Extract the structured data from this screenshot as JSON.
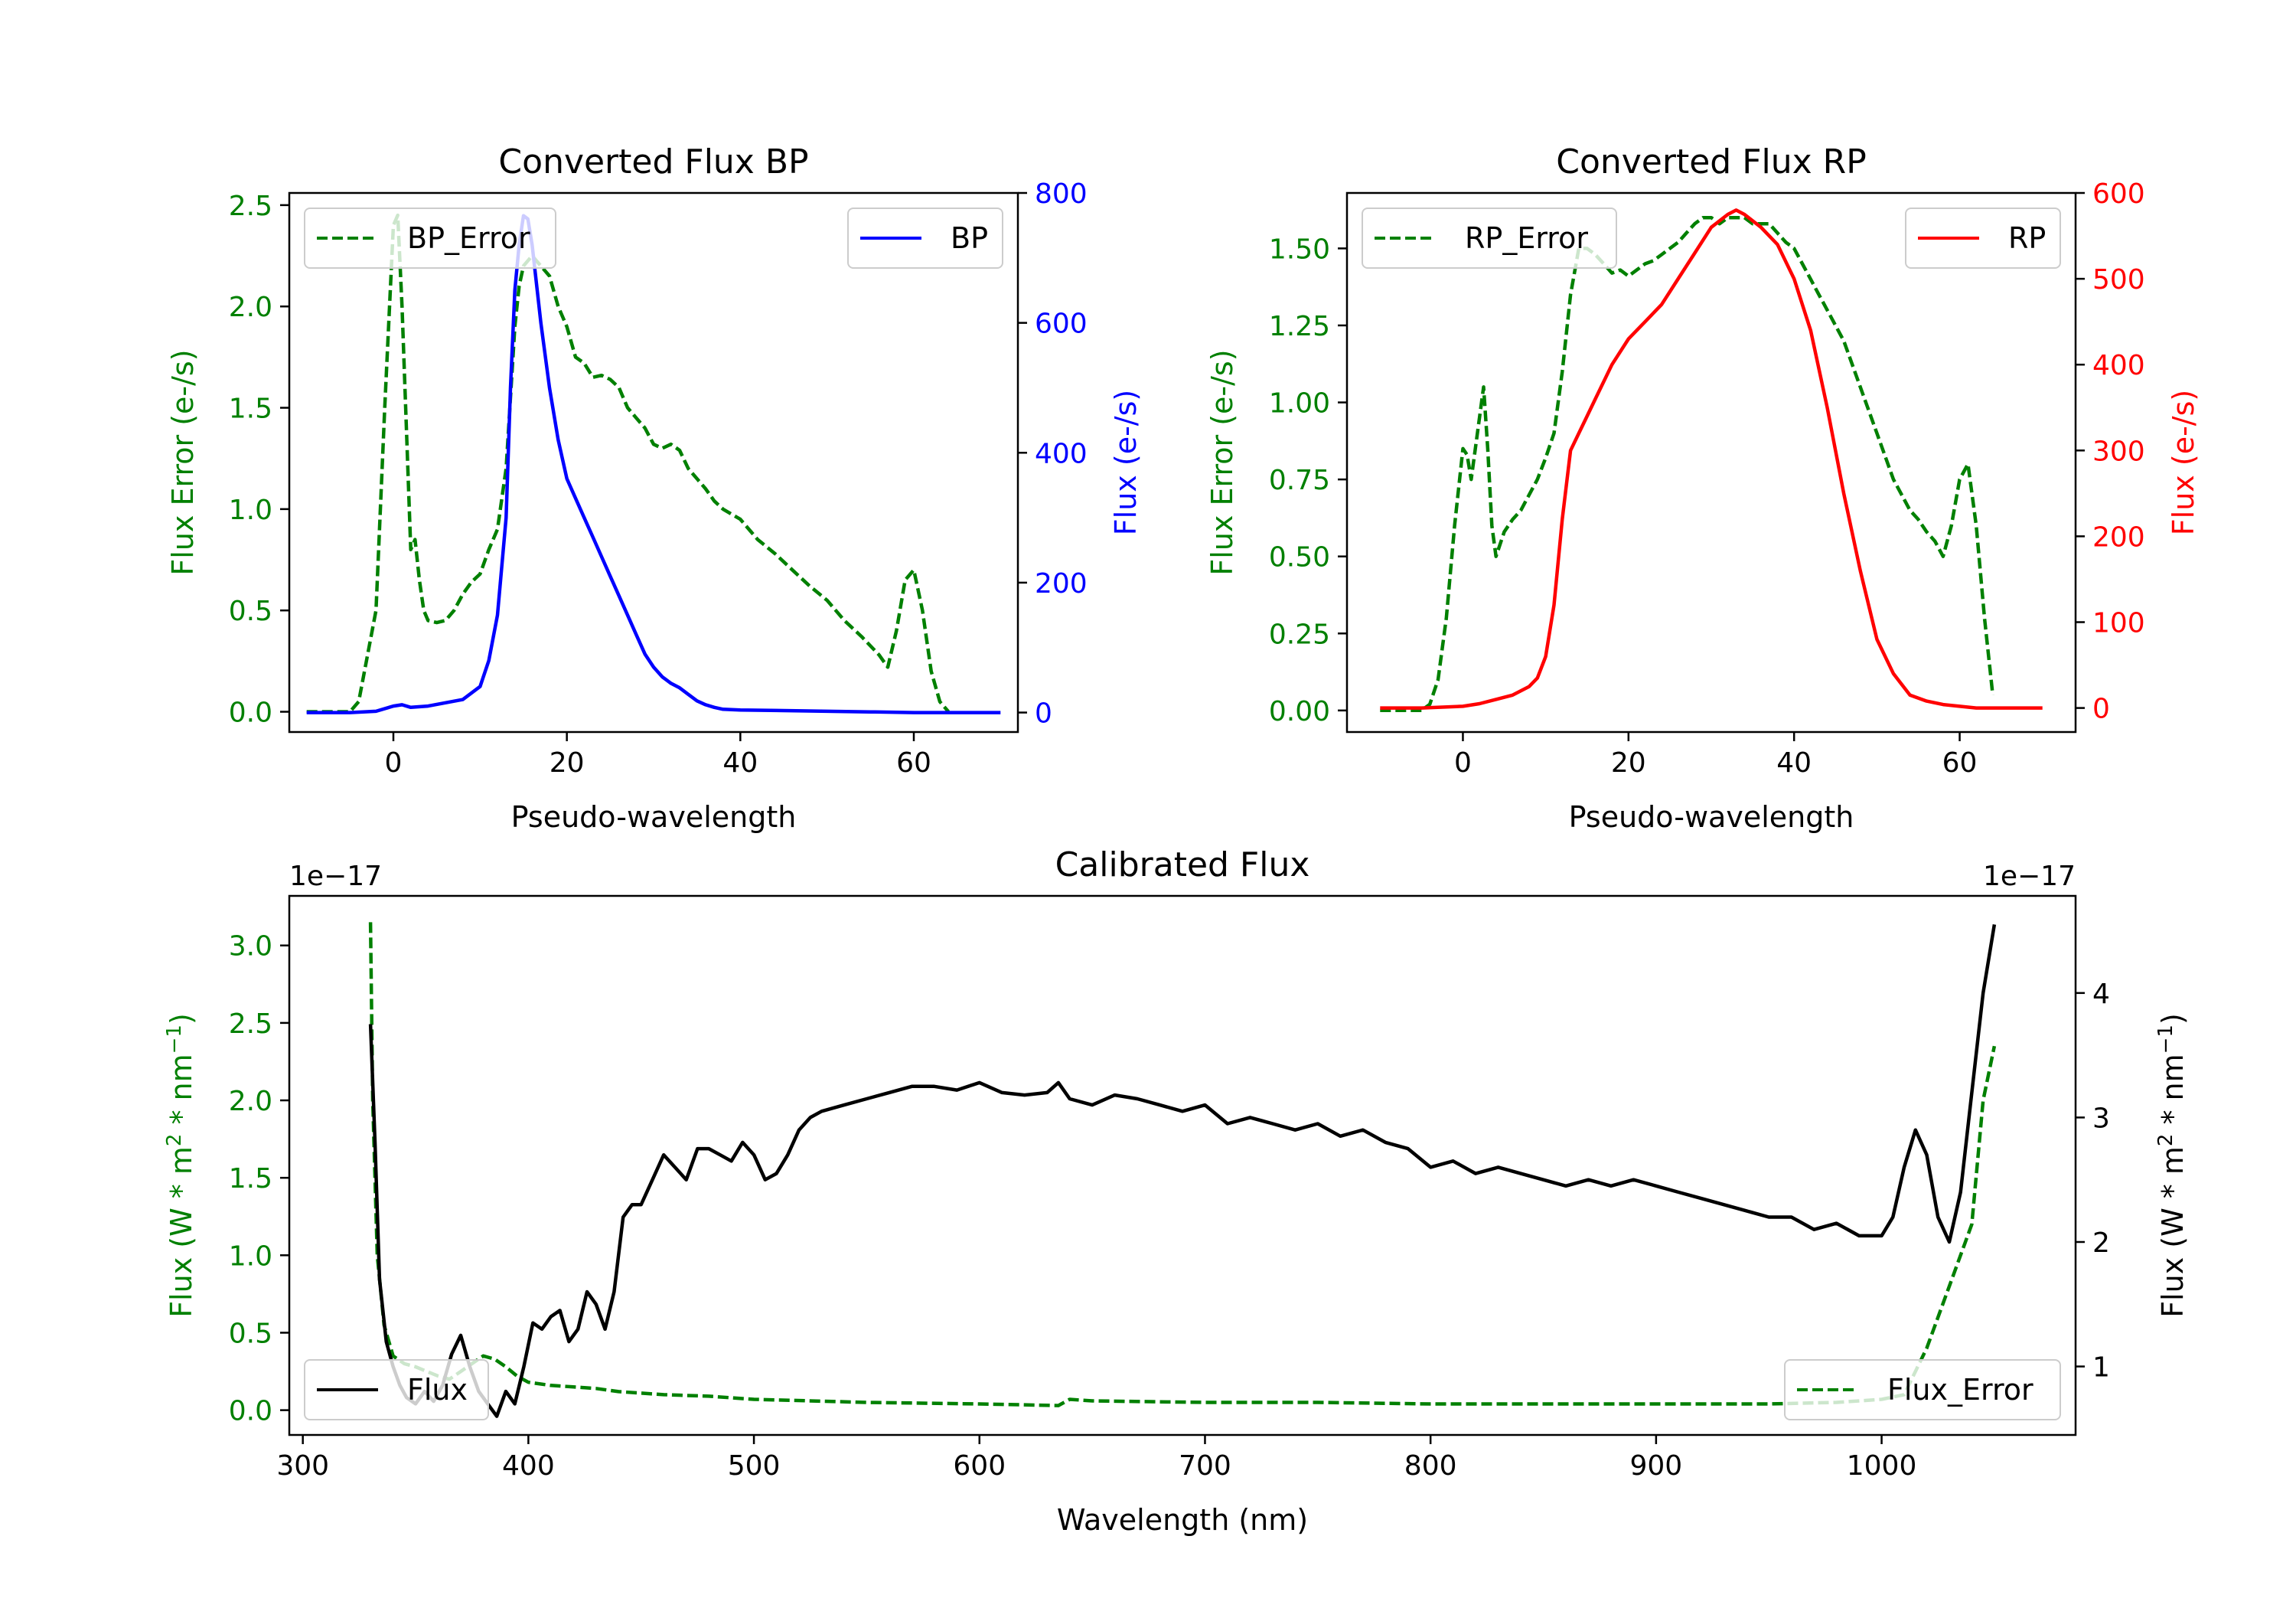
{
  "chart_data": [
    {
      "type": "line",
      "title": "Converted Flux BP",
      "xlabel": "Pseudo-wavelength",
      "xlim": [
        -12,
        72
      ],
      "x_ticks": [
        0,
        20,
        40,
        60
      ],
      "left_axis": {
        "label": "Flux Error (e-/s)",
        "color": "#008000",
        "ylim": [
          -0.1,
          2.56
        ],
        "ticks": [
          0.0,
          0.5,
          1.0,
          1.5,
          2.0,
          2.5
        ],
        "tick_labels": [
          "0.0",
          "0.5",
          "1.0",
          "1.5",
          "2.0",
          "2.5"
        ]
      },
      "right_axis": {
        "label": "Flux (e-/s)",
        "color": "#0000ff",
        "ylim": [
          -30,
          800
        ],
        "ticks": [
          0,
          200,
          400,
          600,
          800
        ],
        "tick_labels": [
          "0",
          "200",
          "400",
          "600",
          "800"
        ]
      },
      "series": [
        {
          "name": "BP_Error",
          "axis": "left",
          "style": "dashed",
          "color": "#008000",
          "x": [
            -10,
            -5,
            -4,
            -2,
            -1,
            0,
            0.5,
            1,
            2,
            2.5,
            3,
            3.5,
            4,
            5,
            6,
            7,
            8,
            9,
            10,
            11,
            12,
            13,
            14,
            14.5,
            15,
            16,
            17,
            18,
            19,
            20,
            21,
            22,
            23,
            24,
            25,
            26,
            27,
            28,
            29,
            30,
            31,
            32,
            33,
            34,
            35,
            36,
            37,
            38,
            40,
            42,
            44,
            46,
            48,
            50,
            52,
            54,
            56,
            57,
            58,
            59,
            60,
            61,
            62,
            63,
            64
          ],
          "y": [
            0.0,
            0.0,
            0.05,
            0.5,
            1.5,
            2.4,
            2.45,
            2.0,
            0.8,
            0.85,
            0.65,
            0.5,
            0.45,
            0.44,
            0.45,
            0.5,
            0.58,
            0.64,
            0.68,
            0.8,
            0.9,
            1.2,
            1.9,
            2.1,
            2.2,
            2.25,
            2.2,
            2.15,
            2.0,
            1.9,
            1.75,
            1.72,
            1.65,
            1.66,
            1.64,
            1.6,
            1.5,
            1.45,
            1.4,
            1.32,
            1.3,
            1.32,
            1.29,
            1.2,
            1.15,
            1.1,
            1.04,
            1.0,
            0.95,
            0.85,
            0.78,
            0.7,
            0.62,
            0.55,
            0.45,
            0.37,
            0.28,
            0.22,
            0.4,
            0.65,
            0.7,
            0.5,
            0.2,
            0.05,
            0.0
          ]
        },
        {
          "name": "BP",
          "axis": "right",
          "style": "solid",
          "color": "#0000ff",
          "x": [
            -10,
            -5,
            -2,
            0,
            1,
            2,
            4,
            6,
            8,
            10,
            11,
            12,
            13,
            13.5,
            14,
            14.5,
            15,
            15.5,
            16,
            17,
            18,
            19,
            20,
            21,
            22,
            23,
            24,
            25,
            26,
            27,
            28,
            29,
            30,
            31,
            32,
            33,
            34,
            35,
            36,
            37,
            38,
            40,
            45,
            50,
            55,
            60,
            65,
            70
          ],
          "y": [
            0,
            0,
            2,
            10,
            12,
            8,
            10,
            15,
            20,
            40,
            80,
            150,
            300,
            500,
            650,
            720,
            765,
            760,
            720,
            600,
            500,
            420,
            360,
            330,
            300,
            270,
            240,
            210,
            180,
            150,
            120,
            90,
            70,
            55,
            45,
            38,
            28,
            18,
            12,
            8,
            5,
            4,
            3,
            2,
            1,
            0,
            0,
            0
          ]
        }
      ],
      "legend": [
        {
          "name": "BP_Error",
          "placement": "upper-left"
        },
        {
          "name": "BP",
          "placement": "upper-right"
        }
      ]
    },
    {
      "type": "line",
      "title": "Converted Flux RP",
      "xlabel": "Pseudo-wavelength",
      "xlim": [
        -14,
        74
      ],
      "x_ticks": [
        0,
        20,
        40,
        60
      ],
      "left_axis": {
        "label": "Flux Error (e-/s)",
        "color": "#008000",
        "ylim": [
          -0.07,
          1.68
        ],
        "ticks": [
          0.0,
          0.25,
          0.5,
          0.75,
          1.0,
          1.25,
          1.5
        ],
        "tick_labels": [
          "0.00",
          "0.25",
          "0.50",
          "0.75",
          "1.00",
          "1.25",
          "1.50"
        ]
      },
      "right_axis": {
        "label": "Flux (e-/s)",
        "color": "#ff0000",
        "ylim": [
          -28,
          600
        ],
        "ticks": [
          0,
          100,
          200,
          300,
          400,
          500,
          600
        ],
        "tick_labels": [
          "0",
          "100",
          "200",
          "300",
          "400",
          "500",
          "600"
        ]
      },
      "series": [
        {
          "name": "RP_Error",
          "axis": "left",
          "style": "dashed",
          "color": "#008000",
          "x": [
            -10,
            -5,
            -4,
            -3,
            -2,
            -1,
            0,
            0.5,
            1,
            1.5,
            2,
            2.5,
            3,
            3.5,
            4,
            5,
            6,
            7,
            8,
            9,
            10,
            11,
            12,
            13,
            14,
            15,
            16,
            17,
            18,
            19,
            20,
            21,
            22,
            23,
            24,
            25,
            26,
            27,
            28,
            29,
            30,
            31,
            32,
            33,
            34,
            35,
            36,
            37,
            38,
            39,
            40,
            41,
            42,
            43,
            44,
            46,
            48,
            50,
            52,
            54,
            55,
            56,
            57,
            58,
            59,
            60,
            61,
            62,
            63,
            64
          ],
          "y": [
            0.0,
            0.0,
            0.02,
            0.1,
            0.3,
            0.6,
            0.85,
            0.83,
            0.75,
            0.85,
            0.95,
            1.05,
            0.85,
            0.6,
            0.5,
            0.58,
            0.62,
            0.65,
            0.7,
            0.75,
            0.82,
            0.9,
            1.1,
            1.35,
            1.5,
            1.5,
            1.48,
            1.45,
            1.42,
            1.43,
            1.41,
            1.43,
            1.45,
            1.46,
            1.48,
            1.5,
            1.52,
            1.55,
            1.58,
            1.6,
            1.6,
            1.58,
            1.6,
            1.6,
            1.6,
            1.58,
            1.58,
            1.58,
            1.55,
            1.52,
            1.5,
            1.45,
            1.4,
            1.35,
            1.3,
            1.2,
            1.05,
            0.9,
            0.75,
            0.65,
            0.62,
            0.58,
            0.55,
            0.5,
            0.6,
            0.75,
            0.8,
            0.6,
            0.3,
            0.05
          ]
        },
        {
          "name": "RP",
          "axis": "right",
          "style": "solid",
          "color": "#ff0000",
          "x": [
            -10,
            -5,
            0,
            2,
            4,
            6,
            8,
            9,
            10,
            11,
            12,
            13,
            14,
            15,
            16,
            18,
            20,
            22,
            24,
            26,
            28,
            30,
            32,
            33,
            34,
            36,
            38,
            40,
            42,
            44,
            46,
            48,
            50,
            52,
            54,
            56,
            58,
            60,
            62,
            65,
            70
          ],
          "y": [
            0,
            0,
            2,
            5,
            10,
            15,
            25,
            35,
            60,
            120,
            220,
            300,
            320,
            340,
            360,
            400,
            430,
            450,
            470,
            500,
            530,
            560,
            575,
            580,
            575,
            560,
            540,
            500,
            440,
            350,
            250,
            160,
            80,
            40,
            15,
            8,
            4,
            2,
            0,
            0,
            0
          ]
        }
      ],
      "legend": [
        {
          "name": "RP_Error",
          "placement": "upper-left"
        },
        {
          "name": "RP",
          "placement": "upper-right"
        }
      ]
    },
    {
      "type": "line",
      "title": "Calibrated Flux",
      "xlabel": "Wavelength (nm)",
      "xlim": [
        294,
        1086
      ],
      "x_ticks": [
        300,
        400,
        500,
        600,
        700,
        800,
        900,
        1000
      ],
      "left_axis": {
        "label": "Flux (W * m$^2$ * nm$^{-1}$)",
        "label_text": "Flux (W * m",
        "label_sup1": "2",
        "label_mid": " * nm",
        "label_sup2": "−1",
        "label_end": ")",
        "offset_text": "1e−17",
        "color": "#008000",
        "ylim": [
          -0.16,
          3.32
        ],
        "ticks": [
          0.0,
          0.5,
          1.0,
          1.5,
          2.0,
          2.5,
          3.0
        ],
        "tick_labels": [
          "0.0",
          "0.5",
          "1.0",
          "1.5",
          "2.0",
          "2.5",
          "3.0"
        ]
      },
      "right_axis": {
        "label": "Flux (W * m$^2$ * nm$^{-1}$)",
        "label_text": "Flux (W * m",
        "label_sup1": "2",
        "label_mid": " * nm",
        "label_sup2": "−1",
        "label_end": ")",
        "offset_text": "1e−17",
        "color": "#000000",
        "ylim": [
          0.45,
          4.78
        ],
        "ticks": [
          1,
          2,
          3,
          4
        ],
        "tick_labels": [
          "1",
          "2",
          "3",
          "4"
        ]
      },
      "series": [
        {
          "name": "Flux_Error",
          "axis": "left",
          "style": "dashed",
          "color": "#008000",
          "x": [
            330,
            331,
            333,
            336,
            340,
            345,
            350,
            355,
            360,
            365,
            370,
            375,
            380,
            385,
            390,
            395,
            400,
            410,
            420,
            430,
            440,
            460,
            480,
            500,
            550,
            600,
            635,
            640,
            650,
            700,
            750,
            800,
            850,
            900,
            950,
            980,
            1000,
            1010,
            1020,
            1030,
            1040,
            1045,
            1050
          ],
          "y": [
            3.15,
            2.0,
            1.0,
            0.55,
            0.35,
            0.3,
            0.28,
            0.25,
            0.22,
            0.2,
            0.25,
            0.3,
            0.35,
            0.33,
            0.28,
            0.22,
            0.18,
            0.16,
            0.15,
            0.14,
            0.12,
            0.1,
            0.09,
            0.07,
            0.05,
            0.04,
            0.03,
            0.07,
            0.06,
            0.05,
            0.05,
            0.04,
            0.04,
            0.04,
            0.04,
            0.05,
            0.07,
            0.1,
            0.4,
            0.8,
            1.2,
            2.0,
            2.35
          ]
        },
        {
          "name": "Flux",
          "axis": "right",
          "style": "solid",
          "color": "#000000",
          "x": [
            330,
            332,
            334,
            337,
            340,
            343,
            346,
            350,
            354,
            358,
            362,
            366,
            370,
            374,
            378,
            382,
            386,
            390,
            394,
            398,
            402,
            406,
            410,
            414,
            418,
            422,
            426,
            430,
            434,
            438,
            442,
            446,
            450,
            455,
            460,
            465,
            470,
            475,
            480,
            485,
            490,
            495,
            500,
            505,
            510,
            515,
            520,
            525,
            530,
            540,
            550,
            560,
            570,
            580,
            590,
            600,
            610,
            620,
            630,
            635,
            640,
            650,
            660,
            670,
            680,
            690,
            700,
            710,
            720,
            730,
            740,
            750,
            760,
            770,
            780,
            790,
            800,
            810,
            820,
            830,
            840,
            850,
            860,
            870,
            880,
            890,
            900,
            910,
            920,
            930,
            940,
            950,
            960,
            970,
            980,
            990,
            1000,
            1005,
            1010,
            1015,
            1020,
            1025,
            1030,
            1035,
            1040,
            1045,
            1050
          ],
          "y": [
            3.75,
            2.8,
            1.7,
            1.2,
            1.0,
            0.85,
            0.75,
            0.7,
            0.8,
            0.72,
            0.85,
            1.1,
            1.25,
            1.0,
            0.8,
            0.7,
            0.6,
            0.8,
            0.7,
            1.0,
            1.35,
            1.3,
            1.4,
            1.45,
            1.2,
            1.3,
            1.6,
            1.5,
            1.3,
            1.6,
            2.2,
            2.3,
            2.3,
            2.5,
            2.7,
            2.6,
            2.5,
            2.75,
            2.75,
            2.7,
            2.65,
            2.8,
            2.7,
            2.5,
            2.55,
            2.7,
            2.9,
            3.0,
            3.05,
            3.1,
            3.15,
            3.2,
            3.25,
            3.25,
            3.22,
            3.28,
            3.2,
            3.18,
            3.2,
            3.28,
            3.15,
            3.1,
            3.18,
            3.15,
            3.1,
            3.05,
            3.1,
            2.95,
            3.0,
            2.95,
            2.9,
            2.95,
            2.85,
            2.9,
            2.8,
            2.75,
            2.6,
            2.65,
            2.55,
            2.6,
            2.55,
            2.5,
            2.45,
            2.5,
            2.45,
            2.5,
            2.45,
            2.4,
            2.35,
            2.3,
            2.25,
            2.2,
            2.2,
            2.1,
            2.15,
            2.05,
            2.05,
            2.2,
            2.6,
            2.9,
            2.7,
            2.2,
            2.0,
            2.4,
            3.2,
            4.0,
            4.55
          ]
        }
      ],
      "legend": [
        {
          "name": "Flux",
          "placement": "lower-left"
        },
        {
          "name": "Flux_Error",
          "placement": "lower-right"
        }
      ]
    }
  ]
}
